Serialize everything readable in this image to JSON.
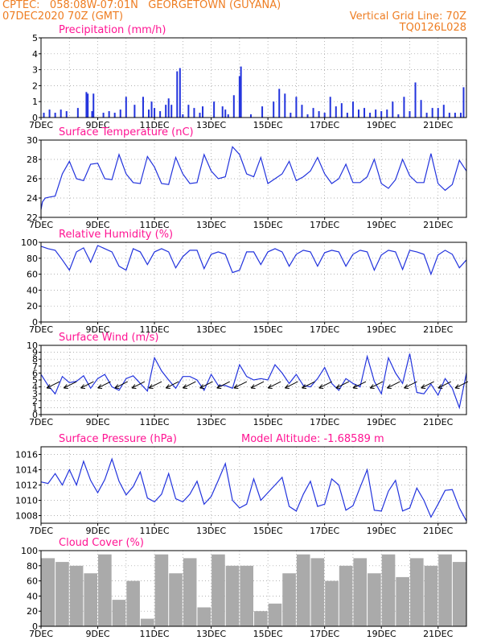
{
  "header": {
    "line1_left": "CPTEC:   058:08W-07:01N   GEORGETOWN (GUYANA)",
    "line2_left": "07DEC2020 70Z (GMT)",
    "line2_right": "Vertical Grid Line: 70Z",
    "line3_right": "TQ0126L028"
  },
  "x_axis": {
    "dates": [
      "7DEC",
      "9DEC",
      "11DEC",
      "13DEC",
      "15DEC",
      "17DEC",
      "19DEC",
      "21DEC"
    ],
    "day_offsets": [
      0,
      2,
      4,
      6,
      8,
      10,
      12,
      14
    ],
    "range_days": [
      0,
      15
    ]
  },
  "colors": {
    "line": "#2233dd",
    "bar": "#2233dd",
    "cloud": "#aaaaaa",
    "header": "#ee7d22",
    "title": "#ff1493"
  },
  "chart_data": [
    {
      "type": "bar",
      "title": "Precipitation (mm/h)",
      "ylim": [
        0,
        5
      ],
      "yticks": [
        0,
        1,
        2,
        3,
        4,
        5
      ],
      "x_days": [
        0.1,
        0.3,
        0.5,
        0.7,
        0.9,
        1.3,
        1.6,
        1.65,
        1.8,
        1.85,
        2.2,
        2.4,
        2.6,
        2.8,
        3.0,
        3.3,
        3.6,
        3.8,
        3.9,
        4.0,
        4.2,
        4.4,
        4.5,
        4.6,
        4.8,
        4.9,
        5.0,
        5.2,
        5.4,
        5.6,
        5.7,
        6.1,
        6.4,
        6.5,
        6.6,
        6.8,
        7.0,
        7.05,
        7.4,
        7.8,
        8.2,
        8.4,
        8.6,
        8.8,
        9.0,
        9.2,
        9.4,
        9.6,
        9.8,
        10.0,
        10.2,
        10.4,
        10.6,
        10.8,
        11.0,
        11.2,
        11.4,
        11.6,
        11.8,
        12.0,
        12.2,
        12.4,
        12.6,
        12.8,
        13.0,
        13.2,
        13.4,
        13.6,
        13.8,
        14.0,
        14.2,
        14.4,
        14.6,
        14.8,
        14.9
      ],
      "values": [
        0.3,
        0.5,
        0.3,
        0.5,
        0.4,
        0.6,
        1.6,
        1.5,
        0.4,
        1.5,
        0.3,
        0.4,
        0.3,
        0.5,
        1.3,
        0.8,
        1.3,
        0.5,
        1.0,
        0.6,
        0.4,
        0.8,
        1.2,
        0.8,
        2.9,
        3.1,
        0.2,
        0.8,
        0.6,
        0.3,
        0.7,
        1.0,
        0.7,
        0.5,
        0.2,
        1.4,
        2.6,
        3.2,
        0.2,
        0.7,
        1.0,
        1.8,
        1.5,
        0.3,
        1.3,
        0.8,
        0.2,
        0.6,
        0.4,
        0.3,
        1.3,
        0.7,
        0.9,
        0.3,
        1.0,
        0.5,
        0.6,
        0.3,
        0.5,
        0.4,
        0.5,
        1.0,
        0.2,
        1.3,
        0.4,
        2.2,
        1.1,
        0.3,
        0.6,
        0.6,
        0.8,
        0.3,
        0.3,
        0.3,
        1.9
      ]
    },
    {
      "type": "line",
      "title": "Surface Temperature (nC)",
      "ylim": [
        22,
        30
      ],
      "yticks": [
        22,
        24,
        26,
        28,
        30
      ],
      "x_days": [
        0,
        0.05,
        0.15,
        0.3,
        0.5,
        0.75,
        1.0,
        1.25,
        1.5,
        1.75,
        2.0,
        2.25,
        2.5,
        2.75,
        3.0,
        3.25,
        3.5,
        3.75,
        4.0,
        4.25,
        4.5,
        4.75,
        5.0,
        5.25,
        5.5,
        5.75,
        6.0,
        6.25,
        6.5,
        6.75,
        7.0,
        7.25,
        7.5,
        7.75,
        8.0,
        8.25,
        8.5,
        8.75,
        9.0,
        9.25,
        9.5,
        9.75,
        10.0,
        10.25,
        10.5,
        10.75,
        11.0,
        11.25,
        11.5,
        11.75,
        12.0,
        12.25,
        12.5,
        12.75,
        13.0,
        13.25,
        13.5,
        13.75,
        14.0,
        14.25,
        14.5,
        14.75,
        15.0
      ],
      "values": [
        22.8,
        23.6,
        24.0,
        24.1,
        24.2,
        26.5,
        27.8,
        26.0,
        25.8,
        27.5,
        27.6,
        26.0,
        25.9,
        28.5,
        26.5,
        25.6,
        25.5,
        28.3,
        27.2,
        25.5,
        25.4,
        28.2,
        26.5,
        25.5,
        25.6,
        28.5,
        26.8,
        26.0,
        26.2,
        29.3,
        28.5,
        26.5,
        26.2,
        28.2,
        25.5,
        26.0,
        26.5,
        27.8,
        25.8,
        26.2,
        26.8,
        28.2,
        26.5,
        25.5,
        26.0,
        27.5,
        25.6,
        25.6,
        26.2,
        28.0,
        25.5,
        25.0,
        25.9,
        28.0,
        26.3,
        25.6,
        25.6,
        28.6,
        25.5,
        24.8,
        25.4,
        27.9,
        26.8
      ]
    },
    {
      "type": "line",
      "title": "Relative Humidity (%)",
      "ylim": [
        0,
        100
      ],
      "yticks": [
        0,
        20,
        40,
        60,
        80,
        100
      ],
      "x_days": [
        0,
        0.25,
        0.5,
        0.75,
        1.0,
        1.25,
        1.5,
        1.75,
        2.0,
        2.25,
        2.5,
        2.75,
        3.0,
        3.25,
        3.5,
        3.75,
        4.0,
        4.25,
        4.5,
        4.75,
        5.0,
        5.25,
        5.5,
        5.75,
        6.0,
        6.25,
        6.5,
        6.75,
        7.0,
        7.25,
        7.5,
        7.75,
        8.0,
        8.25,
        8.5,
        8.75,
        9.0,
        9.25,
        9.5,
        9.75,
        10.0,
        10.25,
        10.5,
        10.75,
        11.0,
        11.25,
        11.5,
        11.75,
        12.0,
        12.25,
        12.5,
        12.75,
        13.0,
        13.25,
        13.5,
        13.75,
        14.0,
        14.25,
        14.5,
        14.75,
        15.0
      ],
      "values": [
        95,
        92,
        90,
        78,
        65,
        88,
        93,
        75,
        96,
        92,
        88,
        70,
        65,
        92,
        88,
        72,
        88,
        92,
        88,
        68,
        82,
        90,
        90,
        67,
        85,
        88,
        85,
        62,
        65,
        88,
        88,
        72,
        88,
        92,
        88,
        70,
        85,
        90,
        88,
        70,
        87,
        90,
        88,
        70,
        85,
        90,
        88,
        65,
        84,
        90,
        88,
        66,
        90,
        88,
        85,
        60,
        84,
        90,
        85,
        68,
        78
      ]
    },
    {
      "type": "line",
      "title": "Surface Wind (m/s)",
      "ylim": [
        0,
        10
      ],
      "yticks": [
        0,
        1,
        2,
        3,
        4,
        5,
        6,
        7,
        8,
        9,
        10
      ],
      "x_days": [
        0,
        0.25,
        0.5,
        0.75,
        1.0,
        1.25,
        1.5,
        1.75,
        2.0,
        2.25,
        2.5,
        2.75,
        3.0,
        3.25,
        3.5,
        3.75,
        4.0,
        4.25,
        4.5,
        4.75,
        5.0,
        5.25,
        5.5,
        5.75,
        6.0,
        6.25,
        6.5,
        6.75,
        7.0,
        7.25,
        7.5,
        7.75,
        8.0,
        8.25,
        8.5,
        8.75,
        9.0,
        9.25,
        9.5,
        9.75,
        10.0,
        10.25,
        10.5,
        10.75,
        11.0,
        11.25,
        11.5,
        11.75,
        12.0,
        12.25,
        12.5,
        12.75,
        13.0,
        13.25,
        13.5,
        13.75,
        14.0,
        14.25,
        14.5,
        14.75,
        15.0
      ],
      "values": [
        5.8,
        4.2,
        3.0,
        5.5,
        4.6,
        4.8,
        5.6,
        3.8,
        5.2,
        5.8,
        4.0,
        3.5,
        5.2,
        5.6,
        4.5,
        3.4,
        8.2,
        6.3,
        5.0,
        3.8,
        5.5,
        5.5,
        5.0,
        3.5,
        5.8,
        4.2,
        4.2,
        3.8,
        7.2,
        5.5,
        5.0,
        5.2,
        5.0,
        7.2,
        6.0,
        4.5,
        5.8,
        4.2,
        4.0,
        5.2,
        6.8,
        4.5,
        3.5,
        5.2,
        4.5,
        4.0,
        8.4,
        4.8,
        3.0,
        8.2,
        6.0,
        4.5,
        8.8,
        3.2,
        3.0,
        4.4,
        2.8,
        5.2,
        3.8,
        1.0,
        6.0
      ],
      "arrow_x_days": [
        0.4,
        1.0,
        1.6,
        2.2,
        2.8,
        3.4,
        4.0,
        4.6,
        5.2,
        5.8,
        6.4,
        7.0,
        7.6,
        8.2,
        8.8,
        9.4,
        10.0,
        10.6,
        11.2,
        11.8,
        12.4,
        13.0,
        13.6,
        14.2,
        14.8
      ]
    },
    {
      "type": "line",
      "title": "Surface Pressure (hPa)",
      "subtitle": "Model Altitude: -1.68589 m",
      "ylim": [
        1007,
        1017
      ],
      "yticks": [
        1008,
        1010,
        1012,
        1014,
        1016
      ],
      "x_days": [
        0,
        0.25,
        0.5,
        0.75,
        1.0,
        1.25,
        1.5,
        1.75,
        2.0,
        2.25,
        2.5,
        2.75,
        3.0,
        3.25,
        3.5,
        3.75,
        4.0,
        4.25,
        4.5,
        4.75,
        5.0,
        5.25,
        5.5,
        5.75,
        6.0,
        6.25,
        6.5,
        6.75,
        7.0,
        7.25,
        7.5,
        7.75,
        8.0,
        8.25,
        8.5,
        8.75,
        9.0,
        9.25,
        9.5,
        9.75,
        10.0,
        10.25,
        10.5,
        10.75,
        11.0,
        11.25,
        11.5,
        11.75,
        12.0,
        12.25,
        12.5,
        12.75,
        13.0,
        13.25,
        13.5,
        13.75,
        14.0,
        14.25,
        14.5,
        14.75,
        15.0
      ],
      "values": [
        1012.4,
        1012.2,
        1013.5,
        1012.0,
        1014.0,
        1012.0,
        1015.1,
        1012.6,
        1011.0,
        1012.7,
        1015.4,
        1012.5,
        1010.7,
        1011.8,
        1013.7,
        1010.3,
        1009.8,
        1010.8,
        1013.5,
        1010.2,
        1009.8,
        1010.8,
        1012.5,
        1009.5,
        1010.5,
        1012.6,
        1014.8,
        1010.0,
        1009.0,
        1009.5,
        1012.8,
        1010.0,
        1011.0,
        1012.0,
        1013.0,
        1009.2,
        1008.6,
        1010.8,
        1012.5,
        1009.2,
        1009.5,
        1012.8,
        1012.0,
        1008.7,
        1009.3,
        1011.7,
        1014.0,
        1008.7,
        1008.6,
        1011.2,
        1012.6,
        1008.6,
        1009.0,
        1011.6,
        1010.0,
        1007.8,
        1009.5,
        1011.3,
        1011.4,
        1009.0,
        1007.3
      ]
    },
    {
      "type": "bar",
      "title": "Cloud Cover (%)",
      "ylim": [
        0,
        100
      ],
      "yticks": [
        0,
        20,
        40,
        60,
        80,
        100
      ],
      "x_days": [
        0,
        0.5,
        1.0,
        1.5,
        2.0,
        2.5,
        3.0,
        3.5,
        4.0,
        4.5,
        5.0,
        5.5,
        6.0,
        6.5,
        7.0,
        7.5,
        8.0,
        8.5,
        9.0,
        9.5,
        10.0,
        10.5,
        11.0,
        11.5,
        12.0,
        12.5,
        13.0,
        13.5,
        14.0,
        14.5
      ],
      "values": [
        90,
        85,
        80,
        70,
        95,
        35,
        60,
        10,
        95,
        70,
        90,
        25,
        95,
        80,
        80,
        20,
        30,
        70,
        95,
        90,
        60,
        80,
        90,
        70,
        95,
        65,
        90,
        80,
        95,
        85
      ]
    }
  ]
}
